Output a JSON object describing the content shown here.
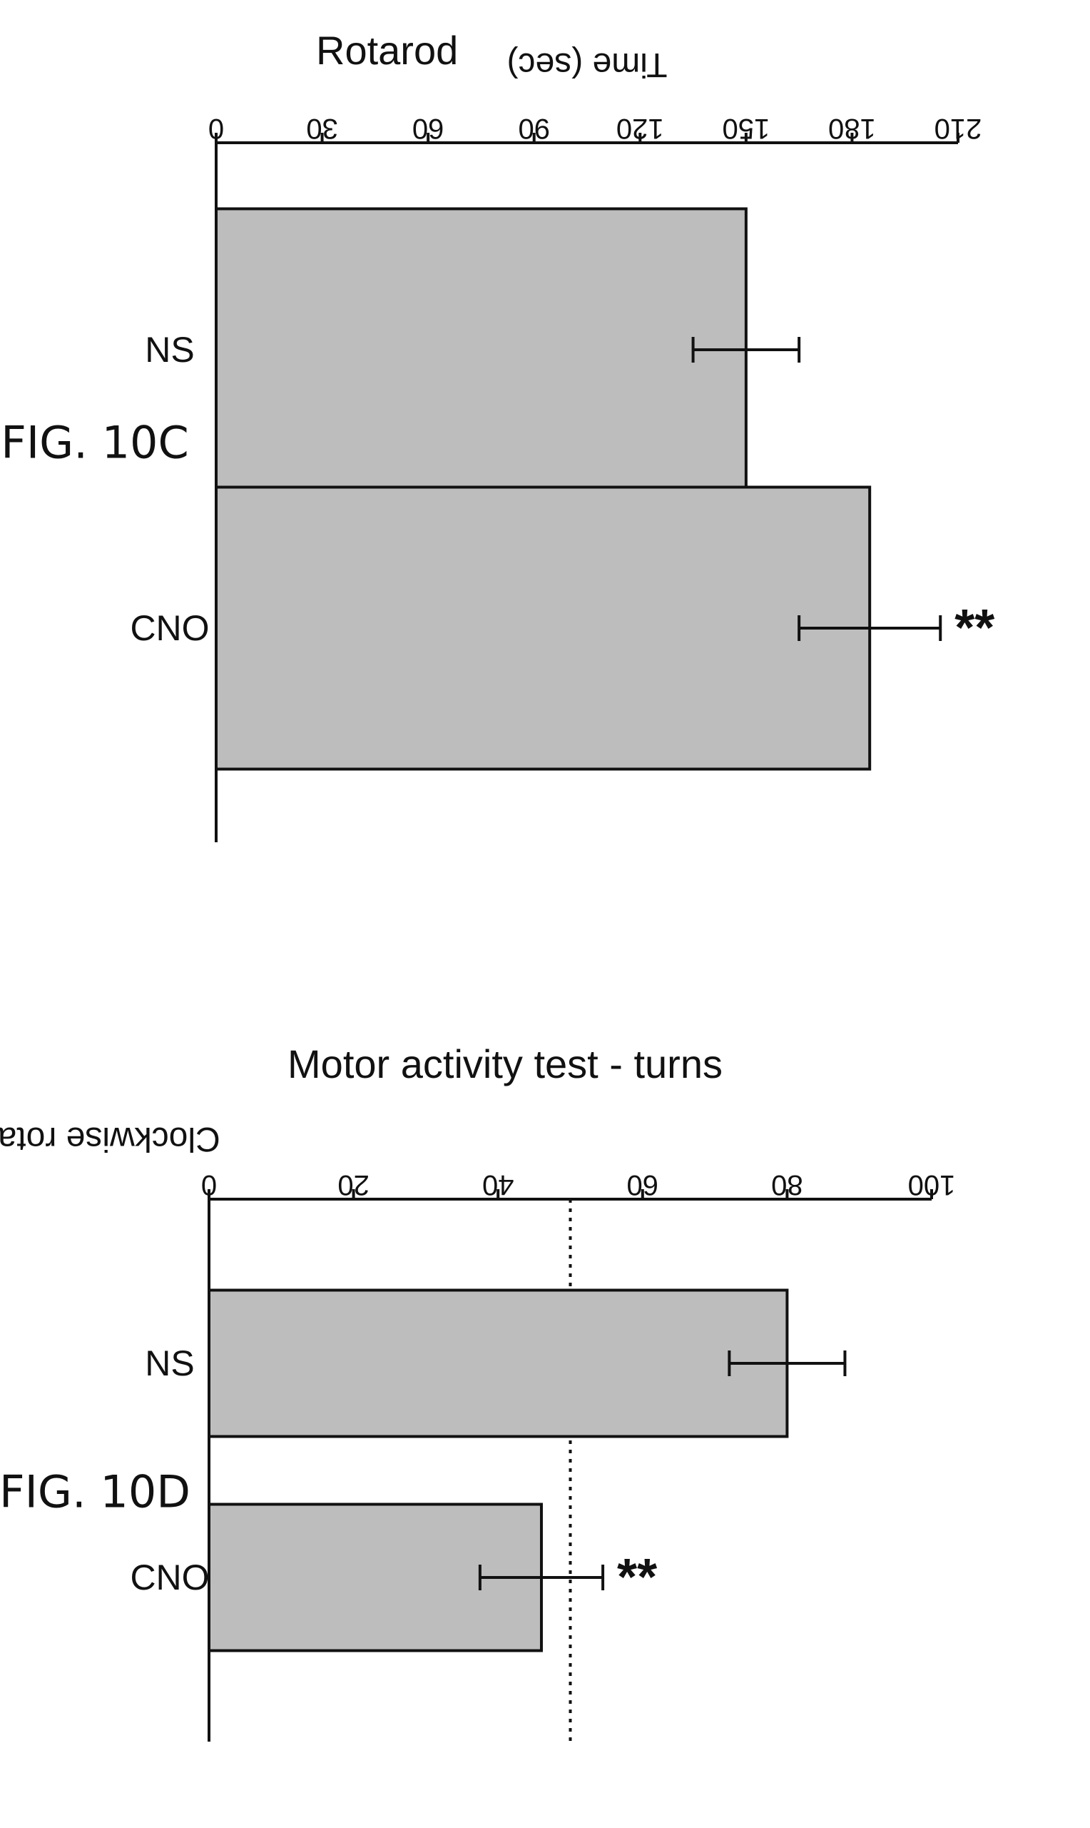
{
  "page": {
    "orientation": "rotated-90-clockwise"
  },
  "colors": {
    "bar_fill": "#bdbdbd",
    "axis": "#111111",
    "reference_line": "#111111"
  },
  "chart_data": [
    {
      "id": "fig10c",
      "figure_label": "FIG. 10C",
      "type": "bar",
      "title": "Rotarod",
      "xlabel": "",
      "ylabel": "Time (sec)",
      "ylim": [
        0,
        210
      ],
      "yticks": [
        0,
        30,
        60,
        90,
        120,
        150,
        180,
        210
      ],
      "categories": [
        "NS",
        "CNO"
      ],
      "values": [
        150,
        185
      ],
      "errors": [
        15,
        20
      ],
      "significance": [
        "",
        "**"
      ],
      "reference_line": null,
      "grid": false,
      "legend": "none"
    },
    {
      "id": "fig10d",
      "figure_label": "FIG. 10D",
      "type": "bar",
      "title": "Motor activity test - turns",
      "xlabel": "",
      "ylabel": "Clockwise rotations (%)",
      "ylim": [
        0,
        100
      ],
      "yticks": [
        0,
        20,
        40,
        60,
        80,
        100
      ],
      "categories": [
        "NS",
        "CNO"
      ],
      "values": [
        80,
        46
      ],
      "errors": [
        8,
        8.5
      ],
      "significance": [
        "",
        "**"
      ],
      "reference_line": {
        "value": 50,
        "style": "dotted"
      },
      "grid": false,
      "legend": "none"
    }
  ]
}
